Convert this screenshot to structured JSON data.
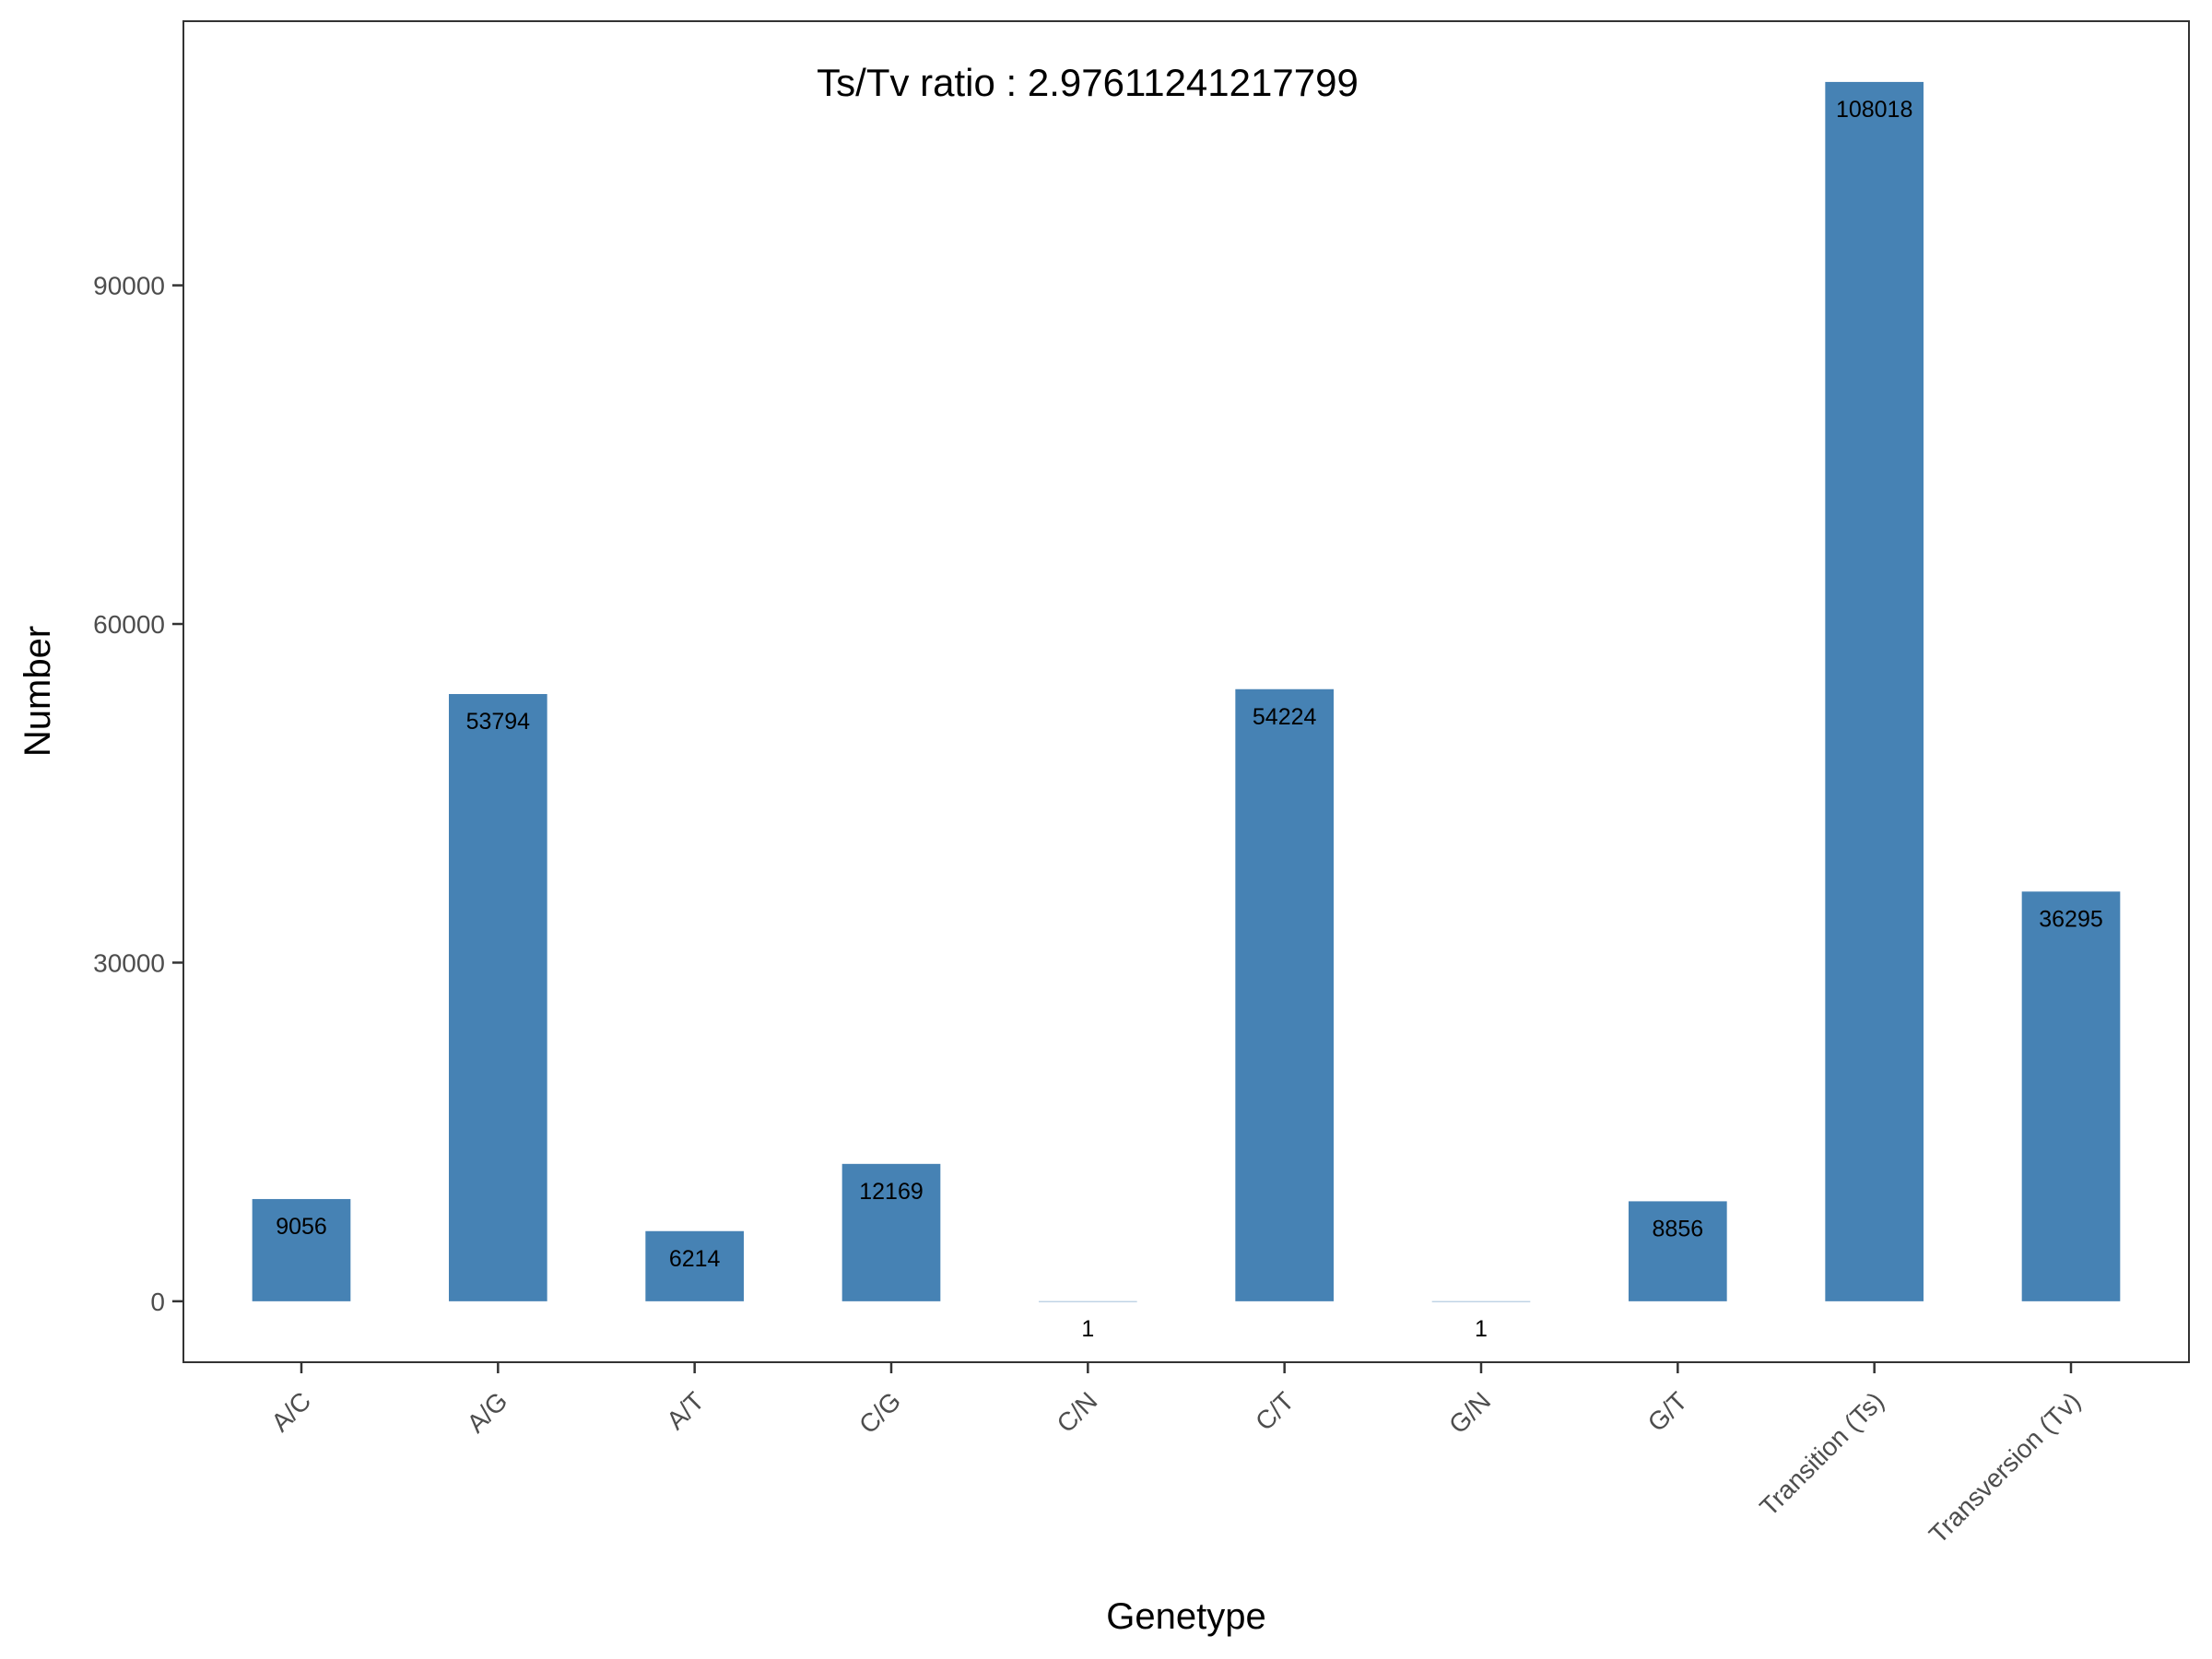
{
  "chart_data": {
    "type": "bar",
    "title": "",
    "annotation": "Ts/Tv ratio : 2.97611241217799",
    "xlabel": "Genetype",
    "ylabel": "Number",
    "categories": [
      "A/C",
      "A/G",
      "A/T",
      "C/G",
      "C/N",
      "C/T",
      "G/N",
      "G/T",
      "Transition (Ts)",
      "Transversion (Tv)"
    ],
    "values": [
      9056,
      53794,
      6214,
      12169,
      1,
      54224,
      1,
      8856,
      108018,
      36295
    ],
    "value_labels": [
      "9056",
      "53794",
      "6214",
      "12169",
      "1",
      "54224",
      "1",
      "8856",
      "108018",
      "36295"
    ],
    "yticks": [
      0,
      30000,
      60000,
      90000
    ],
    "ytick_labels": [
      "0",
      "30000",
      "60000",
      "90000"
    ],
    "ylim": [
      -5400,
      113400
    ],
    "bar_color": "#4682b4",
    "grid": false,
    "legend": "none"
  }
}
